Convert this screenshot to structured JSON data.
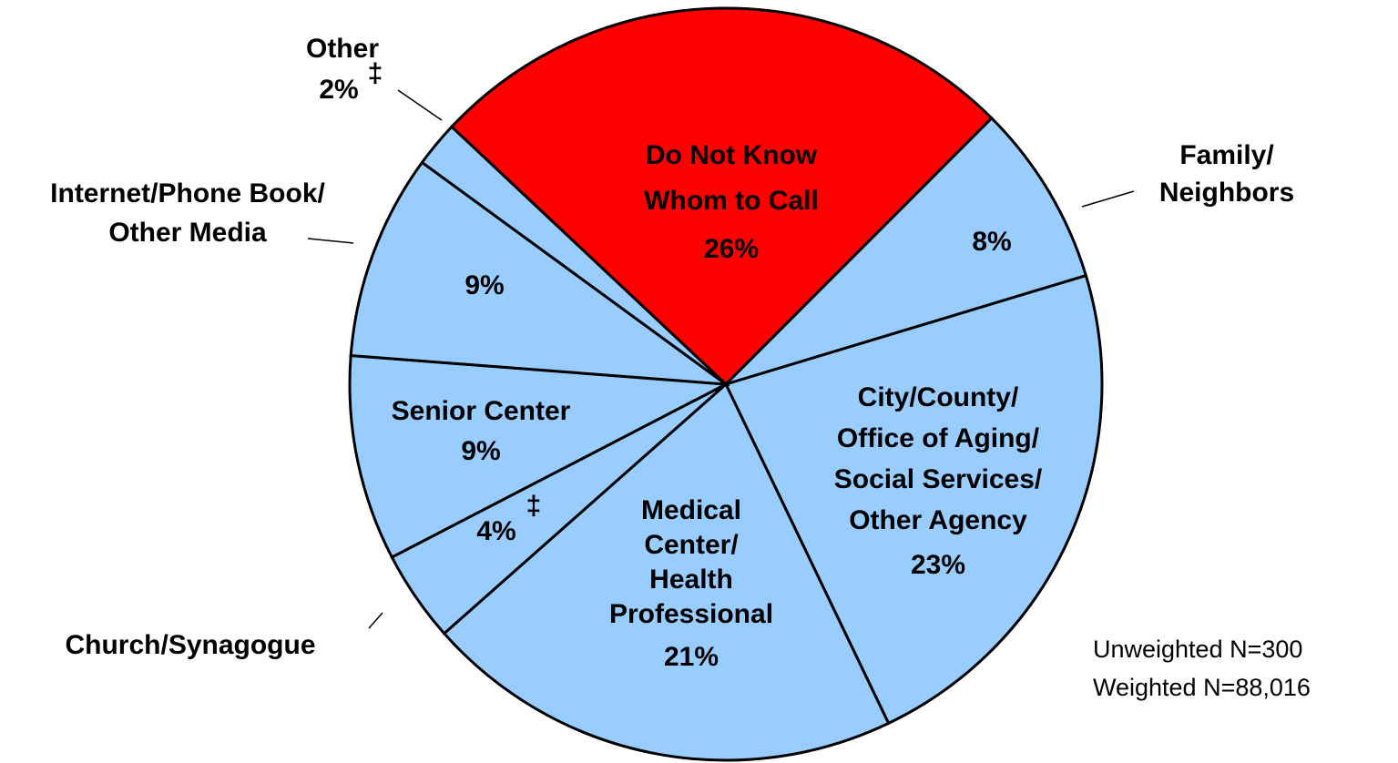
{
  "chart_data": {
    "type": "pie",
    "categories": [
      [
        "Do Not Know",
        "Whom to Call"
      ],
      [
        "Family/",
        "Neighbors"
      ],
      [
        "City/County/",
        "Office of Aging/",
        "Social Services/",
        "Other Agency"
      ],
      [
        "Medical",
        "Center/",
        "Health",
        "Professional"
      ],
      [
        "Church/Synagogue"
      ],
      [
        "Senior Center"
      ],
      [
        "Internet/Phone Book/",
        "Other Media"
      ],
      [
        "Other"
      ]
    ],
    "values": [
      26,
      8,
      23,
      21,
      4,
      9,
      9,
      2
    ],
    "value_labels": [
      "26%",
      "8%",
      "23%",
      "21%",
      "4%",
      "9%",
      "9%",
      "2%"
    ],
    "footnote_marks": [
      null,
      null,
      null,
      null,
      "‡",
      null,
      null,
      "‡"
    ],
    "colors": [
      "#ff0000",
      "#99ccff",
      "#99ccff",
      "#99ccff",
      "#99ccff",
      "#99ccff",
      "#99ccff",
      "#99ccff"
    ],
    "annotations": [
      "Unweighted N=300",
      "Weighted N=88,016"
    ]
  }
}
